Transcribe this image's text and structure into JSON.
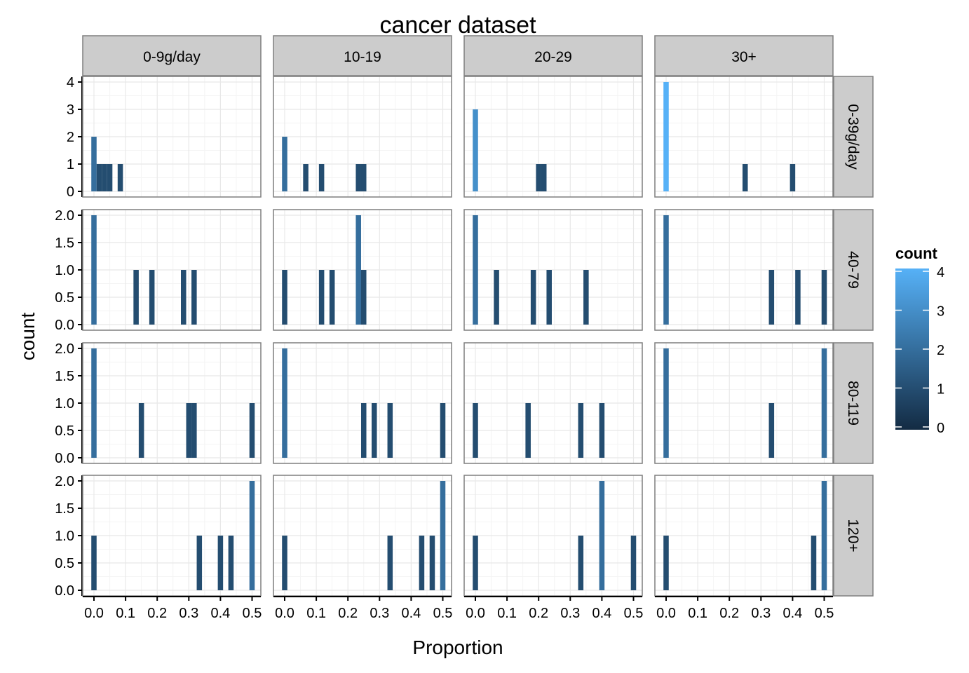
{
  "chart_data": {
    "type": "bar",
    "title": "cancer dataset",
    "xlabel": "Proportion",
    "ylabel": "count",
    "x_ticks": [
      "0.0",
      "0.1",
      "0.2",
      "0.3",
      "0.4",
      "0.5"
    ],
    "xlim": [
      -0.03,
      0.53
    ],
    "col_facets": [
      "0-9g/day",
      "10-19",
      "20-29",
      "30+"
    ],
    "row_facets": [
      {
        "label": "0-39g/day",
        "ylim": [
          0,
          4
        ],
        "y_ticks": [
          "0",
          "1",
          "2",
          "3",
          "4"
        ]
      },
      {
        "label": "40-79",
        "ylim": [
          0,
          2
        ],
        "y_ticks": [
          "0.0",
          "0.5",
          "1.0",
          "1.5",
          "2.0"
        ]
      },
      {
        "label": "80-119",
        "ylim": [
          0,
          2
        ],
        "y_ticks": [
          "0.0",
          "0.5",
          "1.0",
          "1.5",
          "2.0"
        ]
      },
      {
        "label": "120+",
        "ylim": [
          0,
          2
        ],
        "y_ticks": [
          "0.0",
          "0.5",
          "1.0",
          "1.5",
          "2.0"
        ]
      }
    ],
    "grid": true,
    "legend": {
      "title": "count",
      "position": "right",
      "ticks": [
        "0",
        "1",
        "2",
        "3",
        "4"
      ],
      "range": [
        0,
        4
      ],
      "low_color": "#132B43",
      "high_color": "#56B1F7"
    },
    "bin_width": 0.0167,
    "panels": [
      {
        "row": 0,
        "col": 0,
        "bars": [
          {
            "x": 0.0,
            "count": 2
          },
          {
            "x": 0.0167,
            "count": 1
          },
          {
            "x": 0.0333,
            "count": 1
          },
          {
            "x": 0.05,
            "count": 1
          },
          {
            "x": 0.0833,
            "count": 1
          }
        ]
      },
      {
        "row": 0,
        "col": 1,
        "bars": [
          {
            "x": 0.0,
            "count": 2
          },
          {
            "x": 0.0667,
            "count": 1
          },
          {
            "x": 0.1167,
            "count": 1
          },
          {
            "x": 0.2333,
            "count": 1
          },
          {
            "x": 0.25,
            "count": 1
          }
        ]
      },
      {
        "row": 0,
        "col": 2,
        "bars": [
          {
            "x": 0.0,
            "count": 3
          },
          {
            "x": 0.2,
            "count": 1
          },
          {
            "x": 0.2167,
            "count": 1
          }
        ]
      },
      {
        "row": 0,
        "col": 3,
        "bars": [
          {
            "x": 0.0,
            "count": 4
          },
          {
            "x": 0.25,
            "count": 1
          },
          {
            "x": 0.4,
            "count": 1
          }
        ]
      },
      {
        "row": 1,
        "col": 0,
        "bars": [
          {
            "x": 0.0,
            "count": 2
          },
          {
            "x": 0.1333,
            "count": 1
          },
          {
            "x": 0.1833,
            "count": 1
          },
          {
            "x": 0.2833,
            "count": 1
          },
          {
            "x": 0.3167,
            "count": 1
          }
        ]
      },
      {
        "row": 1,
        "col": 1,
        "bars": [
          {
            "x": 0.0,
            "count": 1
          },
          {
            "x": 0.1167,
            "count": 1
          },
          {
            "x": 0.15,
            "count": 1
          },
          {
            "x": 0.2333,
            "count": 2
          },
          {
            "x": 0.25,
            "count": 1
          }
        ]
      },
      {
        "row": 1,
        "col": 2,
        "bars": [
          {
            "x": 0.0,
            "count": 2
          },
          {
            "x": 0.0667,
            "count": 1
          },
          {
            "x": 0.1833,
            "count": 1
          },
          {
            "x": 0.2333,
            "count": 1
          },
          {
            "x": 0.35,
            "count": 1
          }
        ]
      },
      {
        "row": 1,
        "col": 3,
        "bars": [
          {
            "x": 0.0,
            "count": 2
          },
          {
            "x": 0.3333,
            "count": 1
          },
          {
            "x": 0.4167,
            "count": 1
          },
          {
            "x": 0.5,
            "count": 1
          }
        ]
      },
      {
        "row": 2,
        "col": 0,
        "bars": [
          {
            "x": 0.0,
            "count": 2
          },
          {
            "x": 0.15,
            "count": 1
          },
          {
            "x": 0.3,
            "count": 1
          },
          {
            "x": 0.3167,
            "count": 1
          },
          {
            "x": 0.5,
            "count": 1
          }
        ]
      },
      {
        "row": 2,
        "col": 1,
        "bars": [
          {
            "x": 0.0,
            "count": 2
          },
          {
            "x": 0.25,
            "count": 1
          },
          {
            "x": 0.2833,
            "count": 1
          },
          {
            "x": 0.3333,
            "count": 1
          },
          {
            "x": 0.5,
            "count": 1
          }
        ]
      },
      {
        "row": 2,
        "col": 2,
        "bars": [
          {
            "x": 0.0,
            "count": 1
          },
          {
            "x": 0.1667,
            "count": 1
          },
          {
            "x": 0.3333,
            "count": 1
          },
          {
            "x": 0.4,
            "count": 1
          }
        ]
      },
      {
        "row": 2,
        "col": 3,
        "bars": [
          {
            "x": 0.0,
            "count": 2
          },
          {
            "x": 0.3333,
            "count": 1
          },
          {
            "x": 0.5,
            "count": 2
          }
        ]
      },
      {
        "row": 3,
        "col": 0,
        "bars": [
          {
            "x": 0.0,
            "count": 1
          },
          {
            "x": 0.3333,
            "count": 1
          },
          {
            "x": 0.4,
            "count": 1
          },
          {
            "x": 0.4333,
            "count": 1
          },
          {
            "x": 0.5,
            "count": 2
          }
        ]
      },
      {
        "row": 3,
        "col": 1,
        "bars": [
          {
            "x": 0.0,
            "count": 1
          },
          {
            "x": 0.3333,
            "count": 1
          },
          {
            "x": 0.4333,
            "count": 1
          },
          {
            "x": 0.4667,
            "count": 1
          },
          {
            "x": 0.5,
            "count": 2
          }
        ]
      },
      {
        "row": 3,
        "col": 2,
        "bars": [
          {
            "x": 0.0,
            "count": 1
          },
          {
            "x": 0.3333,
            "count": 1
          },
          {
            "x": 0.4,
            "count": 2
          },
          {
            "x": 0.5,
            "count": 1
          }
        ]
      },
      {
        "row": 3,
        "col": 3,
        "bars": [
          {
            "x": 0.0,
            "count": 1
          },
          {
            "x": 0.4667,
            "count": 1
          },
          {
            "x": 0.5,
            "count": 2
          }
        ]
      }
    ]
  }
}
